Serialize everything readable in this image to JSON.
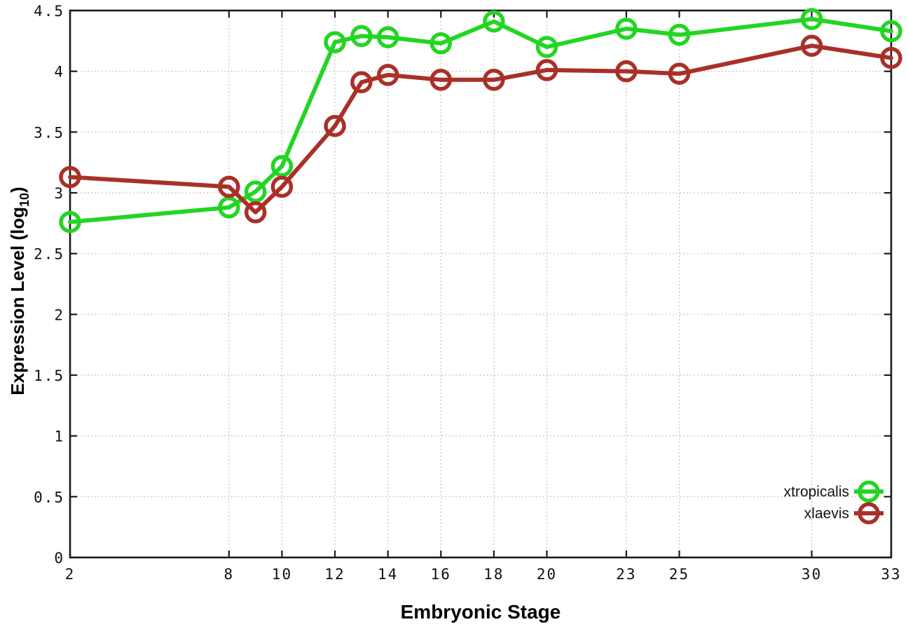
{
  "figure": {
    "background": "#ffffff"
  },
  "chart_data": {
    "type": "line",
    "title": "",
    "xlabel": "Embryonic Stage",
    "ylabel": {
      "text": "Expression Level (log",
      "subscript": "10",
      "suffix": ")"
    },
    "xlim": [
      2,
      33
    ],
    "ylim": [
      0,
      4.5
    ],
    "grid": true,
    "legend_position": "inside-right-lower",
    "axis_color": "#1a1a1a",
    "grid_color": "#c4c4c4",
    "x": [
      2,
      8,
      9,
      10,
      12,
      13,
      14,
      16,
      18,
      20,
      23,
      25,
      30,
      33
    ],
    "series": [
      {
        "name": "xtropicalis",
        "color": "#23d523",
        "marker": "open-circle",
        "values": [
          2.76,
          2.88,
          3.01,
          3.22,
          4.24,
          4.29,
          4.28,
          4.23,
          4.41,
          4.2,
          4.35,
          4.3,
          4.43,
          4.33
        ]
      },
      {
        "name": "xlaevis",
        "color": "#a93028",
        "marker": "open-circle",
        "values": [
          3.13,
          3.05,
          2.84,
          3.05,
          3.55,
          3.91,
          3.97,
          3.93,
          3.93,
          4.01,
          4.0,
          3.98,
          4.21,
          4.11
        ]
      }
    ],
    "x_ticks": [
      2,
      8,
      10,
      12,
      14,
      16,
      18,
      20,
      23,
      25,
      30,
      33
    ],
    "x_tick_labels": [
      "2",
      "8",
      "10",
      "12",
      "14",
      "16",
      "18",
      "20",
      "23",
      "25",
      "30",
      "33"
    ],
    "y_ticks": [
      0,
      0.5,
      1,
      1.5,
      2,
      2.5,
      3,
      3.5,
      4,
      4.5
    ],
    "y_tick_labels": [
      "0",
      "0.5",
      "1",
      "1.5",
      "2",
      "2.5",
      "3",
      "3.5",
      "4",
      "4.5"
    ]
  }
}
